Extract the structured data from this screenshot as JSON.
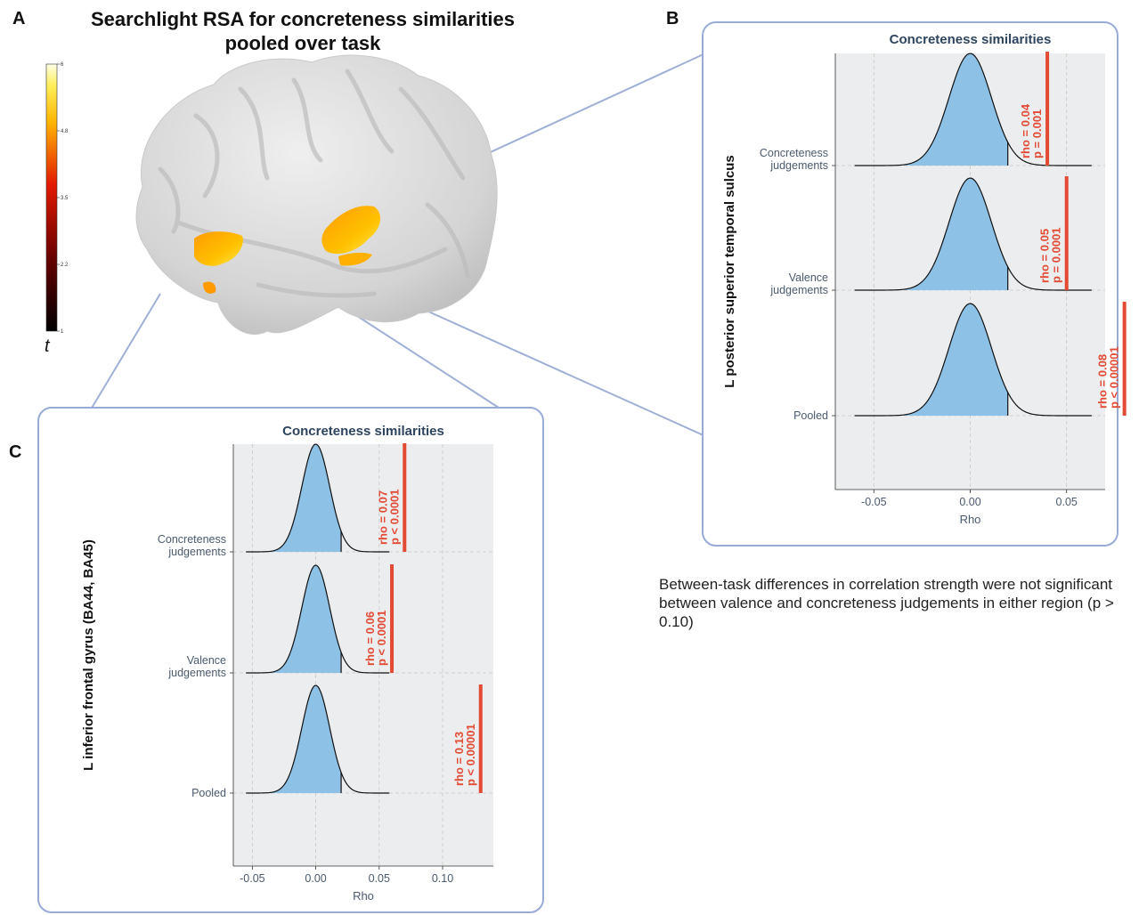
{
  "panels": {
    "a_letter": "A",
    "b_letter": "B",
    "c_letter": "C",
    "a_title_line1": "Searchlight RSA for concreteness similarities",
    "a_title_line2": "pooled over task",
    "colorbar_label": "t",
    "colorbar_ticks": [
      "6",
      "4.8",
      "3.5",
      "2.2",
      "1"
    ]
  },
  "note": "Between-task differences in correlation strength were not significant  between valence and concreteness judgements in either region (p > 0.10)",
  "colors": {
    "density_fill": "#8ec1e6",
    "observed_line": "#e34a33",
    "annotation": "#e34a33",
    "panel_border": "#98aad6",
    "plot_bg": "#ebedef"
  },
  "chart_data": [
    {
      "type": "area",
      "panel": "B",
      "title": "Concreteness similarities",
      "xlabel": "Rho",
      "ylabel": "L posterior superior temporal sulcus",
      "xlim": [
        -0.07,
        0.07
      ],
      "xticks": [
        "-0.05",
        "0.00",
        "0.05"
      ],
      "xtick_values": [
        -0.05,
        0.0,
        0.05
      ],
      "grid": true,
      "series": [
        {
          "name": "Concreteness judgements",
          "label_lines": [
            "Concreteness",
            "judgements"
          ],
          "null_sd": 0.011,
          "null_extent": [
            -0.06,
            0.063
          ],
          "crit": 0.0195,
          "rho": 0.04,
          "annotation": [
            "rho = 0.04",
            "p = 0.001"
          ]
        },
        {
          "name": "Valence judgements",
          "label_lines": [
            "Valence",
            "judgements"
          ],
          "null_sd": 0.011,
          "null_extent": [
            -0.06,
            0.063
          ],
          "crit": 0.0195,
          "rho": 0.05,
          "annotation": [
            "rho = 0.05",
            "p = 0.0001"
          ]
        },
        {
          "name": "Pooled",
          "label_lines": [
            "Pooled"
          ],
          "null_sd": 0.011,
          "null_extent": [
            -0.06,
            0.063
          ],
          "crit": 0.0195,
          "rho": 0.08,
          "annotation": [
            "rho = 0.08",
            "p < 0.00001"
          ]
        }
      ]
    },
    {
      "type": "area",
      "panel": "C",
      "title": "Concreteness similarities",
      "xlabel": "Rho",
      "ylabel": "L inferior frontal gyrus (BA44, BA45)",
      "xlim": [
        -0.065,
        0.14
      ],
      "xticks": [
        "-0.05",
        "0.00",
        "0.05",
        "0.10"
      ],
      "xtick_values": [
        -0.05,
        0.0,
        0.05,
        0.1
      ],
      "grid": true,
      "series": [
        {
          "name": "Concreteness judgements",
          "label_lines": [
            "Concreteness",
            "judgements"
          ],
          "null_sd": 0.011,
          "null_extent": [
            -0.055,
            0.058
          ],
          "crit": 0.02,
          "rho": 0.07,
          "annotation": [
            "rho = 0.07",
            "p < 0.0001"
          ]
        },
        {
          "name": "Valence judgements",
          "label_lines": [
            "Valence",
            "judgements"
          ],
          "null_sd": 0.011,
          "null_extent": [
            -0.055,
            0.058
          ],
          "crit": 0.02,
          "rho": 0.06,
          "annotation": [
            "rho = 0.06",
            "p < 0.0001"
          ]
        },
        {
          "name": "Pooled",
          "label_lines": [
            "Pooled"
          ],
          "null_sd": 0.011,
          "null_extent": [
            -0.055,
            0.058
          ],
          "crit": 0.02,
          "rho": 0.13,
          "annotation": [
            "rho = 0.13",
            "p < 0.00001"
          ]
        }
      ]
    }
  ]
}
